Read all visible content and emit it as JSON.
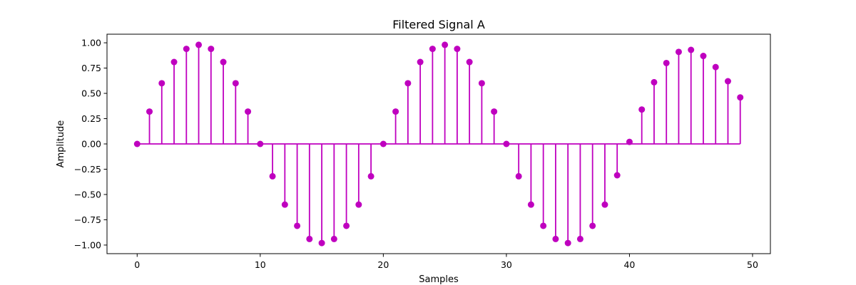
{
  "chart_data": {
    "type": "stem",
    "title": "Filtered Signal A",
    "xlabel": "Samples",
    "ylabel": "Amplitude",
    "xlim": [
      -2.45,
      51.45
    ],
    "ylim": [
      -1.085,
      1.085
    ],
    "xticks": [
      0,
      10,
      20,
      30,
      40,
      50
    ],
    "yticks": [
      -1.0,
      -0.75,
      -0.5,
      -0.25,
      0.0,
      0.25,
      0.5,
      0.75,
      1.0
    ],
    "xtick_labels": [
      "0",
      "10",
      "20",
      "30",
      "40",
      "50"
    ],
    "ytick_labels": [
      "−1.00",
      "−0.75",
      "−0.50",
      "−0.25",
      "0.00",
      "0.25",
      "0.50",
      "0.75",
      "1.00"
    ],
    "grid": false,
    "color": "#bf00bf",
    "x": [
      0,
      1,
      2,
      3,
      4,
      5,
      6,
      7,
      8,
      9,
      10,
      11,
      12,
      13,
      14,
      15,
      16,
      17,
      18,
      19,
      20,
      21,
      22,
      23,
      24,
      25,
      26,
      27,
      28,
      29,
      30,
      31,
      32,
      33,
      34,
      35,
      36,
      37,
      38,
      39,
      40,
      41,
      42,
      43,
      44,
      45,
      46,
      47,
      48,
      49
    ],
    "values": [
      0.0,
      0.32,
      0.6,
      0.81,
      0.94,
      0.98,
      0.94,
      0.81,
      0.6,
      0.32,
      0.0,
      -0.32,
      -0.6,
      -0.81,
      -0.94,
      -0.98,
      -0.94,
      -0.81,
      -0.6,
      -0.32,
      0.0,
      0.32,
      0.6,
      0.81,
      0.94,
      0.98,
      0.94,
      0.81,
      0.6,
      0.32,
      0.0,
      -0.32,
      -0.6,
      -0.81,
      -0.94,
      -0.98,
      -0.94,
      -0.81,
      -0.6,
      -0.31,
      0.02,
      0.34,
      0.61,
      0.8,
      0.91,
      0.93,
      0.87,
      0.76,
      0.62,
      0.46
    ]
  }
}
